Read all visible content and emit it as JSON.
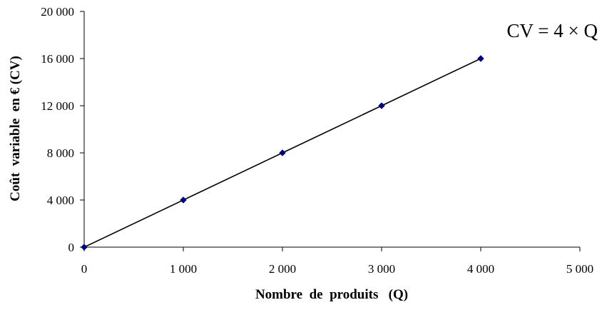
{
  "chart_data": {
    "type": "line",
    "xlabel": "Nombre  de  produits   (Q)",
    "ylabel": "Coût  variable  en € (CV)",
    "annotation": "CV = 4 × Q",
    "xlim": [
      0,
      5000
    ],
    "ylim": [
      0,
      20000
    ],
    "x_ticks": [
      0,
      1000,
      2000,
      3000,
      4000,
      5000
    ],
    "x_tick_labels": [
      "0",
      "1 000",
      "2 000",
      "3 000",
      "4 000",
      "5 000"
    ],
    "y_ticks": [
      0,
      4000,
      8000,
      12000,
      16000,
      20000
    ],
    "y_tick_labels": [
      "0",
      "4 000",
      "8 000",
      "12 000",
      "16 000",
      "20 000"
    ],
    "grid": false,
    "legend": "none",
    "series": [
      {
        "x": [
          0,
          1000,
          2000,
          3000,
          4000
        ],
        "y": [
          0,
          4000,
          8000,
          12000,
          16000
        ],
        "line_color": "#000000",
        "marker_color": "#000080",
        "marker": "diamond"
      }
    ]
  }
}
